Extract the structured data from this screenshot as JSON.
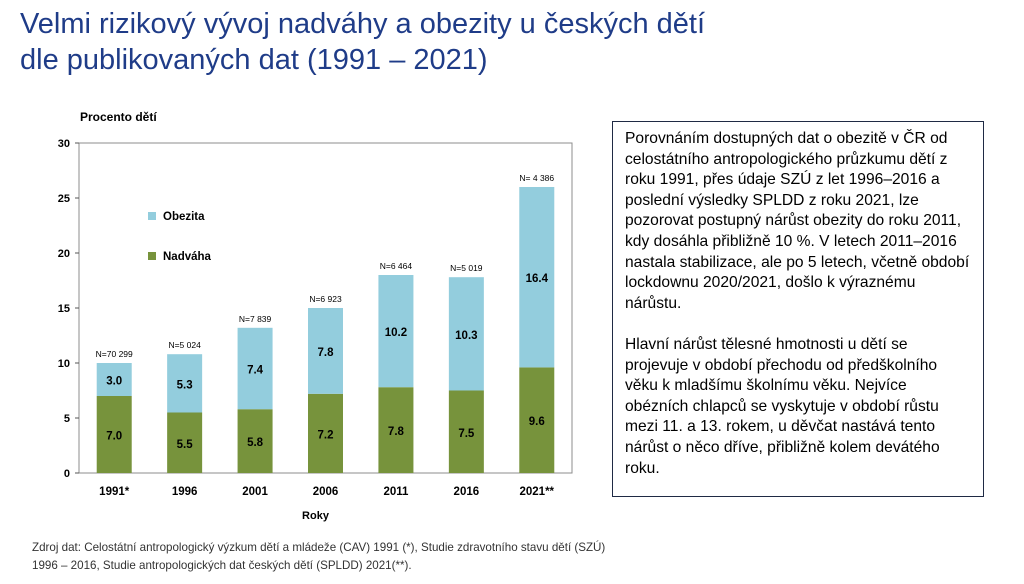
{
  "title": {
    "line1": "Velmi rizikový vývoj nadváhy a obezity u českých dětí",
    "line2": "dle publikovaných dat (1991 – 2021)"
  },
  "chart_data": {
    "type": "bar",
    "stacked": true,
    "ylabel": "Procento dětí",
    "xlabel": "Roky",
    "ylim": [
      0,
      30
    ],
    "yticks": [
      0,
      5,
      10,
      15,
      20,
      25,
      30
    ],
    "categories": [
      "1991*",
      "1996",
      "2001",
      "2006",
      "2011",
      "2016",
      "2021**"
    ],
    "series": [
      {
        "name": "Nadváha",
        "color": "#77933c",
        "values": [
          7.0,
          5.5,
          5.8,
          7.2,
          7.8,
          7.5,
          9.6
        ],
        "labels": [
          "7.0",
          "5.5",
          "5.8",
          "7.2",
          "7.8",
          "7.5",
          "9.6"
        ]
      },
      {
        "name": "Obezita",
        "color": "#93cddd",
        "values": [
          3.0,
          5.3,
          7.4,
          7.8,
          10.2,
          10.3,
          16.4
        ],
        "labels": [
          "3.0",
          "5.3",
          "7.4",
          "7.8",
          "10.2",
          "10.3",
          "16.4"
        ]
      }
    ],
    "n_labels": [
      "N=70  299",
      "N=5 024",
      "N=7 839",
      "N=6 923",
      "N=6 464",
      "N=5 019",
      "N= 4 386"
    ],
    "legend": [
      {
        "name": "Obezita",
        "color": "#93cddd"
      },
      {
        "name": "Nadváha",
        "color": "#77933c"
      }
    ],
    "legend_position": "top-left"
  },
  "info": {
    "paragraph1": "Porovnáním dostupných dat o obezitě v ČR od celostátního antropologického průzkumu dětí z roku 1991, přes údaje SZÚ z let 1996–2016 a poslední výsledky SPLDD z roku 2021, lze pozorovat postupný nárůst obezity do roku 2011, kdy dosáhla přibližně 10 %. V letech 2011–2016 nastala stabilizace, ale po 5 letech, včetně období lockdownu 2020/2021, došlo k výraznému nárůstu.",
    "paragraph2": "Hlavní nárůst tělesné hmotnosti u dětí se projevuje v období přechodu od předškolního věku k mladšímu školnímu věku. Nejvíce obézních chlapců se vyskytuje v období růstu mezi 11. a 13. rokem, u děvčat nastává tento nárůst o něco dříve, přibližně kolem devátého roku."
  },
  "source": {
    "line1": "Zdroj dat: Celostátní antropologický výzkum dětí a mládeže (CAV) 1991 (*), Studie zdravotního stavu dětí (SZÚ)",
    "line2": "1996 – 2016, Studie antropologických dat českých dětí (SPLDD) 2021(**)."
  }
}
